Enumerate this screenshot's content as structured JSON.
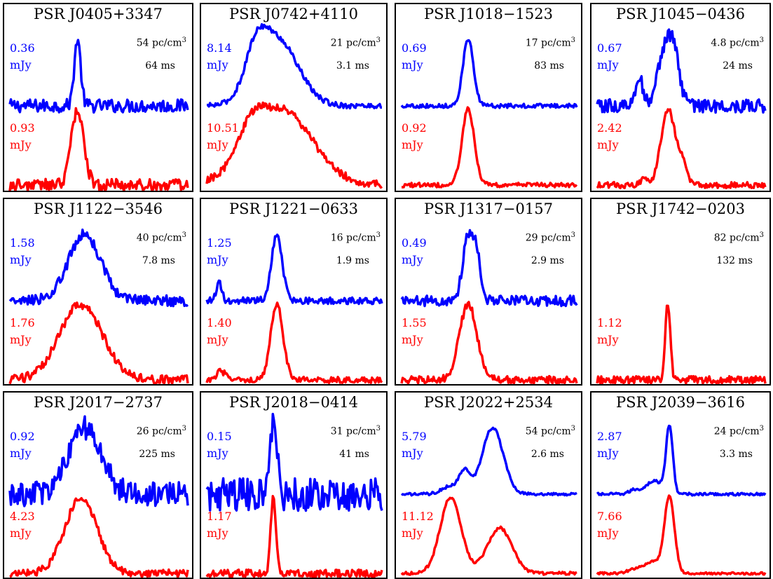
{
  "chart_data": {
    "type": "line",
    "description_free": true,
    "colors": {
      "blue": "#0000ff",
      "red": "#ff0000"
    },
    "panels": [
      {
        "title": "PSR J0405+3347",
        "blue_peak": "0.36",
        "red_peak": "0.93",
        "unit": "mJy",
        "dm": "54 pc/cm",
        "dm_exp": "3",
        "width": "64 ms",
        "blue": {
          "center": 0.38,
          "sigma": 0.018,
          "amp": 1.0,
          "noise": 0.1,
          "extra": []
        },
        "red": {
          "center": 0.38,
          "sigma": 0.035,
          "amp": 1.0,
          "noise": 0.08,
          "extra": []
        }
      },
      {
        "title": "PSR J0742+4110",
        "blue_peak": "8.14",
        "red_peak": "10.51",
        "unit": "mJy",
        "dm": "21 pc/cm",
        "dm_exp": "3",
        "width": "3.1 ms",
        "blue": {
          "center": 0.4,
          "sigma": 0.12,
          "amp": 1.0,
          "noise": 0.04,
          "extra": [
            {
              "c": 0.28,
              "s": 0.06,
              "a": 0.5
            }
          ]
        },
        "red": {
          "center": 0.42,
          "sigma": 0.18,
          "amp": 1.0,
          "noise": 0.05,
          "extra": [
            {
              "c": 0.25,
              "s": 0.07,
              "a": 0.3
            }
          ]
        }
      },
      {
        "title": "PSR J1018−1523",
        "blue_peak": "0.69",
        "red_peak": "0.92",
        "unit": "mJy",
        "dm": "17 pc/cm",
        "dm_exp": "3",
        "width": "83 ms",
        "blue": {
          "center": 0.38,
          "sigma": 0.03,
          "amp": 1.0,
          "noise": 0.03,
          "extra": []
        },
        "red": {
          "center": 0.38,
          "sigma": 0.035,
          "amp": 1.0,
          "noise": 0.03,
          "extra": []
        }
      },
      {
        "title": "PSR J1045−0436",
        "blue_peak": "0.67",
        "red_peak": "2.42",
        "unit": "mJy",
        "dm": "4.8 pc/cm",
        "dm_exp": "3",
        "width": "24 ms",
        "blue": {
          "center": 0.42,
          "sigma": 0.05,
          "amp": 1.0,
          "noise": 0.1,
          "extra": [
            {
              "c": 0.25,
              "s": 0.02,
              "a": 0.45
            },
            {
              "c": 0.46,
              "s": 0.02,
              "a": 0.25
            }
          ]
        },
        "red": {
          "center": 0.42,
          "sigma": 0.04,
          "amp": 1.0,
          "noise": 0.04,
          "extra": [
            {
              "c": 0.5,
              "s": 0.03,
              "a": 0.3
            },
            {
              "c": 0.28,
              "s": 0.02,
              "a": 0.1
            }
          ]
        }
      },
      {
        "title": "PSR J1122−3546",
        "blue_peak": "1.58",
        "red_peak": "1.76",
        "unit": "mJy",
        "dm": "40 pc/cm",
        "dm_exp": "3",
        "width": "7.8 ms",
        "blue": {
          "center": 0.42,
          "sigma": 0.09,
          "amp": 1.0,
          "noise": 0.08,
          "extra": []
        },
        "red": {
          "center": 0.4,
          "sigma": 0.12,
          "amp": 1.0,
          "noise": 0.06,
          "extra": []
        }
      },
      {
        "title": "PSR J1221−0633",
        "blue_peak": "1.25",
        "red_peak": "1.40",
        "unit": "mJy",
        "dm": "16 pc/cm",
        "dm_exp": "3",
        "width": "1.9 ms",
        "blue": {
          "center": 0.4,
          "sigma": 0.03,
          "amp": 1.0,
          "noise": 0.05,
          "extra": [
            {
              "c": 0.07,
              "s": 0.015,
              "a": 0.3
            }
          ]
        },
        "red": {
          "center": 0.4,
          "sigma": 0.035,
          "amp": 1.0,
          "noise": 0.04,
          "extra": [
            {
              "c": 0.08,
              "s": 0.025,
              "a": 0.12
            }
          ]
        }
      },
      {
        "title": "PSR J1317−0157",
        "blue_peak": "0.49",
        "red_peak": "1.55",
        "unit": "mJy",
        "dm": "29 pc/cm",
        "dm_exp": "3",
        "width": "2.9 ms",
        "blue": {
          "center": 0.38,
          "sigma": 0.03,
          "amp": 1.0,
          "noise": 0.08,
          "extra": [
            {
              "c": 0.43,
              "s": 0.02,
              "a": 0.6
            }
          ]
        },
        "red": {
          "center": 0.38,
          "sigma": 0.05,
          "amp": 1.0,
          "noise": 0.05,
          "extra": []
        }
      },
      {
        "title": "PSR J1742−0203",
        "blue_peak": "",
        "red_peak": "1.12",
        "unit": "mJy",
        "dm": "82 pc/cm",
        "dm_exp": "3",
        "width": "132 ms",
        "blue": null,
        "red": {
          "center": 0.42,
          "sigma": 0.015,
          "amp": 1.0,
          "noise": 0.05,
          "extra": []
        }
      },
      {
        "title": "PSR J2017−2737",
        "blue_peak": "0.92",
        "red_peak": "4.23",
        "unit": "mJy",
        "dm": "26 pc/cm",
        "dm_exp": "3",
        "width": "225 ms",
        "blue": {
          "center": 0.42,
          "sigma": 0.09,
          "amp": 1.0,
          "noise": 0.18,
          "extra": []
        },
        "red": {
          "center": 0.4,
          "sigma": 0.09,
          "amp": 1.0,
          "noise": 0.05,
          "extra": []
        }
      },
      {
        "title": "PSR J2018−0414",
        "blue_peak": "0.15",
        "red_peak": "1.17",
        "unit": "mJy",
        "dm": "31 pc/cm",
        "dm_exp": "3",
        "width": "41 ms",
        "blue": {
          "center": 0.38,
          "sigma": 0.02,
          "amp": 1.0,
          "noise": 0.25,
          "extra": []
        },
        "red": {
          "center": 0.38,
          "sigma": 0.015,
          "amp": 1.0,
          "noise": 0.05,
          "extra": []
        }
      },
      {
        "title": "PSR J2022+2534",
        "blue_peak": "5.79",
        "red_peak": "11.12",
        "unit": "mJy",
        "dm": "54 pc/cm",
        "dm_exp": "3",
        "width": "2.6 ms",
        "blue": {
          "center": 0.52,
          "sigma": 0.06,
          "amp": 1.0,
          "noise": 0.02,
          "extra": [
            {
              "c": 0.36,
              "s": 0.03,
              "a": 0.32
            },
            {
              "c": 0.28,
              "s": 0.05,
              "a": 0.12
            }
          ]
        },
        "red": {
          "center": 0.28,
          "sigma": 0.06,
          "amp": 1.0,
          "noise": 0.02,
          "extra": [
            {
              "c": 0.56,
              "s": 0.07,
              "a": 0.6
            }
          ]
        }
      },
      {
        "title": "PSR J2039−3616",
        "blue_peak": "2.87",
        "red_peak": "7.66",
        "unit": "mJy",
        "dm": "24 pc/cm",
        "dm_exp": "3",
        "width": "3.3 ms",
        "blue": {
          "center": 0.43,
          "sigma": 0.02,
          "amp": 1.0,
          "noise": 0.02,
          "extra": [
            {
              "c": 0.34,
              "s": 0.05,
              "a": 0.2
            },
            {
              "c": 0.22,
              "s": 0.03,
              "a": 0.06
            }
          ]
        },
        "red": {
          "center": 0.43,
          "sigma": 0.03,
          "amp": 1.0,
          "noise": 0.015,
          "extra": [
            {
              "c": 0.33,
              "s": 0.05,
              "a": 0.15
            },
            {
              "c": 0.22,
              "s": 0.04,
              "a": 0.05
            }
          ]
        }
      }
    ]
  }
}
